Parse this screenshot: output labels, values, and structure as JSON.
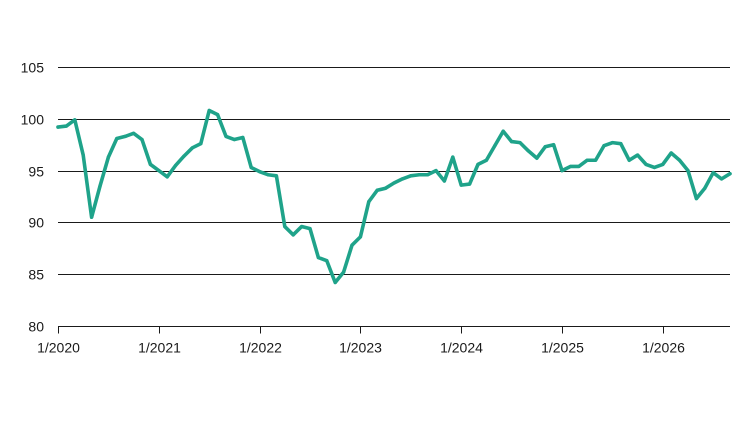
{
  "chart_data": {
    "type": "line",
    "title": "",
    "xlabel": "",
    "ylabel": "",
    "ylim": [
      80,
      105
    ],
    "yticks": [
      80,
      85,
      90,
      95,
      100,
      105
    ],
    "xlim": [
      "2020-01",
      "2026-09"
    ],
    "xticks": [
      "1/2020",
      "1/2021",
      "1/2022",
      "1/2023",
      "1/2024",
      "1/2025",
      "1/2026"
    ],
    "grid": "horizontal",
    "legend": "none",
    "series": [
      {
        "color": "#1fa38a",
        "x": [
          "2020-01",
          "2020-02",
          "2020-03",
          "2020-04",
          "2020-05",
          "2020-06",
          "2020-07",
          "2020-08",
          "2020-09",
          "2020-10",
          "2020-11",
          "2020-12",
          "2021-01",
          "2021-02",
          "2021-03",
          "2021-04",
          "2021-05",
          "2021-06",
          "2021-07",
          "2021-08",
          "2021-09",
          "2021-10",
          "2021-11",
          "2021-12",
          "2022-01",
          "2022-02",
          "2022-03",
          "2022-04",
          "2022-05",
          "2022-06",
          "2022-07",
          "2022-08",
          "2022-09",
          "2022-10",
          "2022-11",
          "2022-12",
          "2023-01",
          "2023-02",
          "2023-03",
          "2023-04",
          "2023-05",
          "2023-06",
          "2023-07",
          "2023-08",
          "2023-09",
          "2023-10",
          "2023-11",
          "2023-12",
          "2024-01",
          "2024-02",
          "2024-03",
          "2024-04",
          "2024-05",
          "2024-06",
          "2024-07",
          "2024-08",
          "2024-09",
          "2024-10",
          "2024-11",
          "2024-12",
          "2025-01",
          "2025-02",
          "2025-03",
          "2025-04",
          "2025-05",
          "2025-06",
          "2025-07",
          "2025-08",
          "2025-09",
          "2025-10",
          "2025-11",
          "2025-12",
          "2026-01",
          "2026-02",
          "2026-03",
          "2026-04",
          "2026-05",
          "2026-06",
          "2026-07",
          "2026-08",
          "2026-09"
        ],
        "y": [
          99.2,
          99.3,
          99.9,
          96.5,
          90.5,
          93.5,
          96.3,
          98.1,
          98.3,
          98.6,
          98.0,
          95.6,
          95.0,
          94.4,
          95.5,
          96.4,
          97.2,
          97.6,
          100.8,
          100.4,
          98.3,
          98.0,
          98.2,
          95.3,
          94.9,
          94.6,
          94.5,
          89.6,
          88.8,
          89.6,
          89.4,
          86.6,
          86.3,
          84.2,
          85.2,
          87.8,
          88.6,
          92.0,
          93.1,
          93.3,
          93.8,
          94.2,
          94.5,
          94.6,
          94.6,
          95.0,
          94.0,
          96.3,
          93.6,
          93.7,
          95.6,
          96.0,
          97.4,
          98.8,
          97.8,
          97.7,
          96.9,
          96.2,
          97.3,
          97.5,
          95.0,
          95.4,
          95.4,
          96.0,
          96.0,
          97.4,
          97.7,
          97.6,
          96.0,
          96.5,
          95.6,
          95.3,
          95.6,
          96.7,
          96.0,
          95.0,
          92.3,
          93.3,
          94.8,
          94.2,
          94.7
        ]
      }
    ]
  }
}
